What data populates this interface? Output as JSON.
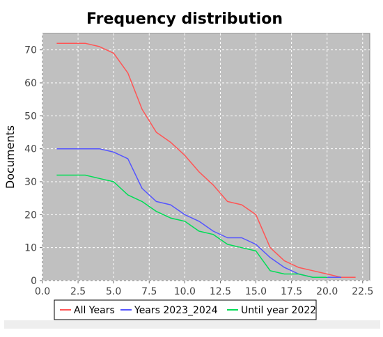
{
  "chart_data": {
    "type": "line",
    "title": "Frequency distribution",
    "xlabel": "",
    "ylabel": "Documents",
    "xlim": [
      0,
      23
    ],
    "ylim": [
      0,
      75
    ],
    "xticks": [
      "0.0",
      "2.5",
      "5.0",
      "7.5",
      "10.0",
      "12.5",
      "15.0",
      "17.5",
      "20.0",
      "22.5"
    ],
    "yticks": [
      "0",
      "10",
      "20",
      "30",
      "40",
      "50",
      "60",
      "70"
    ],
    "grid": true,
    "legend_position": "bottom",
    "colors": {
      "plot_background": "#c0c0c0",
      "grid": "#ffffff"
    },
    "series": [
      {
        "name": "All Years",
        "color": "#ff5555",
        "x": [
          1,
          2,
          3,
          4,
          5,
          6,
          7,
          8,
          9,
          10,
          11,
          12,
          13,
          14,
          15,
          16,
          17,
          18,
          19,
          20,
          21,
          22
        ],
        "y": [
          72,
          72,
          72,
          71,
          69,
          63,
          52,
          45,
          42,
          38,
          33,
          29,
          24,
          23,
          20,
          10,
          6,
          4,
          3,
          2,
          1,
          1
        ]
      },
      {
        "name": "Years 2023_2024",
        "color": "#5555ff",
        "x": [
          1,
          2,
          3,
          4,
          5,
          6,
          7,
          8,
          9,
          10,
          11,
          12,
          13,
          14,
          15,
          16,
          17,
          18,
          19,
          20,
          21
        ],
        "y": [
          40,
          40,
          40,
          40,
          39,
          37,
          28,
          24,
          23,
          20,
          18,
          15,
          13,
          13,
          11,
          7,
          4,
          2,
          1,
          1,
          1
        ]
      },
      {
        "name": "Until year 2022",
        "color": "#00dd55",
        "x": [
          1,
          2,
          3,
          4,
          5,
          6,
          7,
          8,
          9,
          10,
          11,
          12,
          13,
          14,
          15,
          16,
          17,
          18,
          19,
          20
        ],
        "y": [
          32,
          32,
          32,
          31,
          30,
          26,
          24,
          21,
          19,
          18,
          15,
          14,
          11,
          10,
          9,
          3,
          2,
          2,
          1,
          1
        ]
      }
    ]
  }
}
